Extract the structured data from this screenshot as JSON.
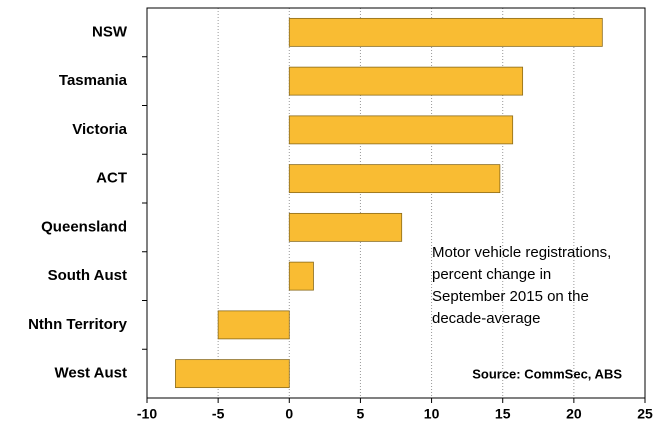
{
  "chart_data": {
    "type": "bar",
    "orientation": "horizontal",
    "categories": [
      "NSW",
      "Tasmania",
      "Victoria",
      "ACT",
      "Queensland",
      "South Aust",
      "Nthn Territory",
      "West Aust"
    ],
    "values": [
      22,
      16.4,
      15.7,
      14.8,
      7.9,
      1.7,
      -5.0,
      -8.0
    ],
    "color": "#f9bc33",
    "xlim": [
      -10,
      25
    ],
    "xticks": [
      -10,
      -5,
      0,
      5,
      10,
      15,
      20,
      25
    ],
    "grid": true,
    "annotation": [
      "Motor vehicle registrations,",
      "percent change in",
      "September 2015 on the",
      "decade-average"
    ],
    "source": "Source: CommSec, ABS"
  }
}
